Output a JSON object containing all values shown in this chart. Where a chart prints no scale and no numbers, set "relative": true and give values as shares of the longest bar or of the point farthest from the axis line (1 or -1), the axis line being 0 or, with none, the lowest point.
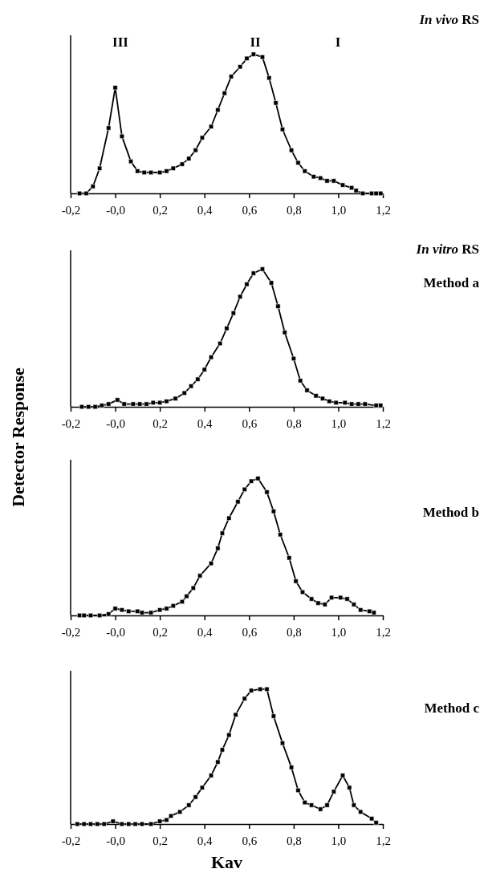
{
  "chart_data": [
    {
      "type": "line",
      "relative": true,
      "marker": "square",
      "line_style": "solid",
      "xlim": [
        -0.2,
        1.2
      ],
      "xticks": [
        {
          "value": -0.2,
          "label": "-0,2"
        },
        {
          "value": 0,
          "label": "-0,0"
        },
        {
          "value": 0.2,
          "label": "0,2"
        },
        {
          "value": 0.4,
          "label": "0,4"
        },
        {
          "value": 0.6,
          "label": "0,6"
        },
        {
          "value": 0.8,
          "label": "0,8"
        },
        {
          "value": 1.0,
          "label": "1,0"
        },
        {
          "value": 1.2,
          "label": "1,2"
        }
      ],
      "annotations": [
        "III",
        "II",
        "I"
      ],
      "x": [
        -0.16,
        -0.13,
        -0.1,
        -0.07,
        -0.03,
        0.0,
        0.03,
        0.07,
        0.1,
        0.13,
        0.16,
        0.2,
        0.23,
        0.26,
        0.3,
        0.33,
        0.36,
        0.39,
        0.43,
        0.46,
        0.49,
        0.52,
        0.56,
        0.59,
        0.62,
        0.66,
        0.69,
        0.72,
        0.75,
        0.79,
        0.82,
        0.85,
        0.89,
        0.92,
        0.95,
        0.98,
        1.02,
        1.06,
        1.08,
        1.11,
        1.15,
        1.17,
        1.19
      ],
      "series": [
        {
          "color": "#000000",
          "values": [
            0,
            0,
            0.05,
            0.18,
            0.47,
            0.76,
            0.41,
            0.23,
            0.16,
            0.15,
            0.15,
            0.15,
            0.16,
            0.18,
            0.21,
            0.25,
            0.31,
            0.4,
            0.48,
            0.6,
            0.72,
            0.84,
            0.91,
            0.97,
            1.0,
            0.98,
            0.83,
            0.65,
            0.46,
            0.31,
            0.22,
            0.16,
            0.12,
            0.11,
            0.09,
            0.09,
            0.06,
            0.04,
            0.02,
            0,
            0,
            0,
            0
          ]
        }
      ]
    },
    {
      "type": "line",
      "ylabel": "Detector Response",
      "relative": true,
      "marker": "square",
      "line_style": "solid",
      "xlim": [
        -0.2,
        1.2
      ],
      "xticks": [
        {
          "value": -0.2,
          "label": "-0,2"
        },
        {
          "value": 0,
          "label": "-0,0"
        },
        {
          "value": 0.2,
          "label": "0,2"
        },
        {
          "value": 0.4,
          "label": "0,4"
        },
        {
          "value": 0.6,
          "label": "0,6"
        },
        {
          "value": 0.8,
          "label": "0,8"
        },
        {
          "value": 1.0,
          "label": "1,0"
        },
        {
          "value": 1.2,
          "label": "1,2"
        }
      ],
      "x": [
        -0.15,
        -0.12,
        -0.09,
        -0.06,
        -0.03,
        0.01,
        0.04,
        0.08,
        0.11,
        0.14,
        0.17,
        0.2,
        0.23,
        0.27,
        0.31,
        0.34,
        0.37,
        0.4,
        0.43,
        0.47,
        0.5,
        0.53,
        0.56,
        0.59,
        0.62,
        0.66,
        0.7,
        0.73,
        0.76,
        0.8,
        0.83,
        0.86,
        0.9,
        0.93,
        0.96,
        0.99,
        1.03,
        1.06,
        1.09,
        1.12,
        1.17,
        1.19
      ],
      "series": [
        {
          "color": "#000000",
          "values": [
            0,
            0,
            0,
            0.01,
            0.02,
            0.05,
            0.02,
            0.02,
            0.02,
            0.02,
            0.03,
            0.03,
            0.04,
            0.06,
            0.1,
            0.15,
            0.2,
            0.27,
            0.36,
            0.46,
            0.57,
            0.68,
            0.8,
            0.89,
            0.97,
            1.0,
            0.9,
            0.73,
            0.54,
            0.35,
            0.19,
            0.12,
            0.08,
            0.06,
            0.04,
            0.03,
            0.03,
            0.02,
            0.02,
            0.02,
            0.01,
            0.01
          ]
        }
      ]
    },
    {
      "type": "line",
      "relative": true,
      "marker": "square",
      "line_style": "solid",
      "xlim": [
        -0.2,
        1.2
      ],
      "xticks": [
        {
          "value": -0.2,
          "label": "-0,2"
        },
        {
          "value": 0,
          "label": "-0,0"
        },
        {
          "value": 0.2,
          "label": "0,2"
        },
        {
          "value": 0.4,
          "label": "0,4"
        },
        {
          "value": 0.6,
          "label": "0,6"
        },
        {
          "value": 0.8,
          "label": "0,8"
        },
        {
          "value": 1.0,
          "label": "1,0"
        },
        {
          "value": 1.2,
          "label": "1,2"
        }
      ],
      "x": [
        -0.16,
        -0.14,
        -0.11,
        -0.07,
        -0.03,
        0.0,
        0.03,
        0.06,
        0.1,
        0.12,
        0.16,
        0.2,
        0.23,
        0.26,
        0.3,
        0.32,
        0.35,
        0.38,
        0.43,
        0.46,
        0.48,
        0.51,
        0.55,
        0.58,
        0.61,
        0.64,
        0.68,
        0.71,
        0.74,
        0.78,
        0.81,
        0.84,
        0.88,
        0.91,
        0.94,
        0.97,
        1.01,
        1.04,
        1.07,
        1.1,
        1.14,
        1.16
      ],
      "series": [
        {
          "color": "#000000",
          "values": [
            0,
            0,
            0,
            0,
            0.01,
            0.05,
            0.04,
            0.03,
            0.03,
            0.02,
            0.02,
            0.04,
            0.05,
            0.07,
            0.1,
            0.14,
            0.2,
            0.29,
            0.38,
            0.49,
            0.6,
            0.71,
            0.83,
            0.92,
            0.98,
            1.0,
            0.9,
            0.76,
            0.59,
            0.42,
            0.25,
            0.17,
            0.12,
            0.09,
            0.08,
            0.13,
            0.13,
            0.12,
            0.08,
            0.04,
            0.03,
            0.02
          ]
        }
      ]
    },
    {
      "type": "line",
      "xlabel": "Kav",
      "relative": true,
      "marker": "square",
      "line_style": "solid",
      "xlim": [
        -0.2,
        1.2
      ],
      "xticks": [
        {
          "value": -0.2,
          "label": "-0,2"
        },
        {
          "value": 0,
          "label": "-0,0"
        },
        {
          "value": 0.2,
          "label": "0,2"
        },
        {
          "value": 0.4,
          "label": "0,4"
        },
        {
          "value": 0.6,
          "label": "0,6"
        },
        {
          "value": 0.8,
          "label": "0,8"
        },
        {
          "value": 1.0,
          "label": "1,0"
        },
        {
          "value": 1.2,
          "label": "1,2"
        }
      ],
      "x": [
        -0.17,
        -0.14,
        -0.11,
        -0.08,
        -0.05,
        -0.01,
        0.03,
        0.06,
        0.09,
        0.12,
        0.16,
        0.2,
        0.23,
        0.25,
        0.29,
        0.33,
        0.36,
        0.39,
        0.43,
        0.46,
        0.48,
        0.51,
        0.54,
        0.58,
        0.61,
        0.65,
        0.68,
        0.71,
        0.75,
        0.79,
        0.82,
        0.85,
        0.88,
        0.92,
        0.95,
        0.98,
        1.02,
        1.05,
        1.07,
        1.1,
        1.15,
        1.17
      ],
      "series": [
        {
          "color": "#000000",
          "values": [
            0,
            0,
            0,
            0,
            0,
            0.02,
            0,
            0,
            0,
            0,
            0,
            0.02,
            0.03,
            0.06,
            0.09,
            0.14,
            0.2,
            0.27,
            0.36,
            0.46,
            0.55,
            0.66,
            0.81,
            0.93,
            0.99,
            1.0,
            1.0,
            0.8,
            0.6,
            0.42,
            0.25,
            0.16,
            0.14,
            0.11,
            0.14,
            0.24,
            0.36,
            0.27,
            0.14,
            0.09,
            0.04,
            0.01
          ]
        }
      ]
    },
    {
      "type": "other",
      "annotations": [
        "In vivo RS",
        "In vitro RS",
        "Method a",
        "Method b",
        "Method c"
      ]
    }
  ]
}
